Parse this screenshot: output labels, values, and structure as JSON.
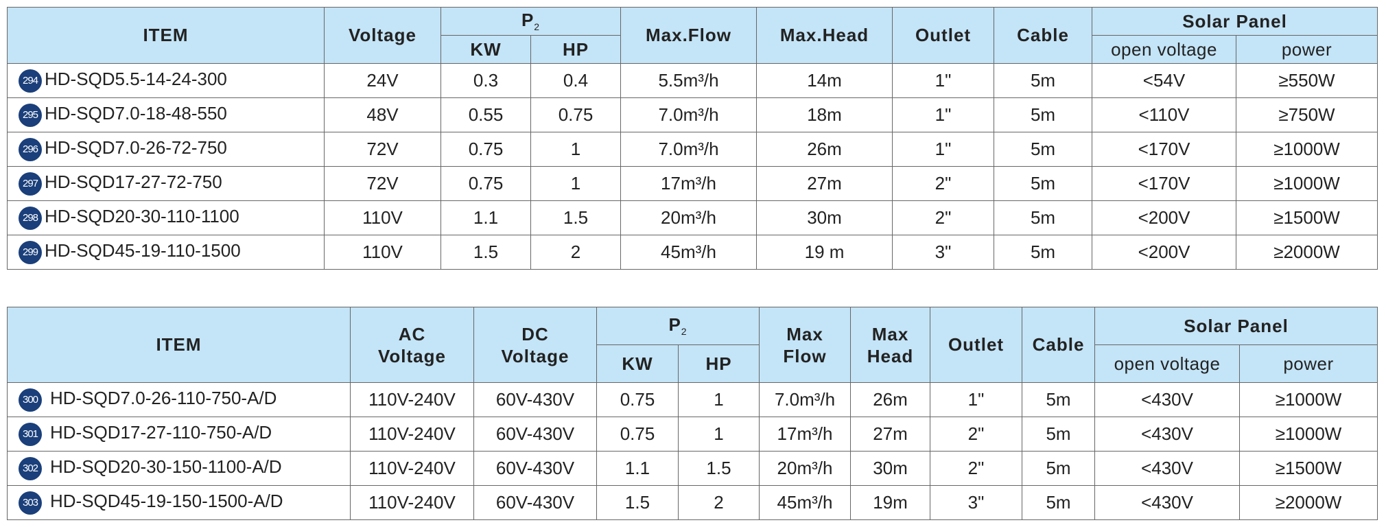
{
  "tables": [
    {
      "header": {
        "item": "ITEM",
        "voltage": "Voltage",
        "p2": "P",
        "p2_sub": "2",
        "kw": "KW",
        "hp": "HP",
        "max_flow": "Max.Flow",
        "max_head": "Max.Head",
        "outlet": "Outlet",
        "cable": "Cable",
        "solar_panel": "Solar Panel",
        "open_voltage": "open voltage",
        "power": "power"
      },
      "rows": [
        [
          "294",
          "HD-SQD5.5-14-24-300",
          "24V",
          "0.3",
          "0.4",
          "5.5m³/h",
          "14m",
          "1\"",
          "5m",
          "<54V",
          "≥550W"
        ],
        [
          "295",
          "HD-SQD7.0-18-48-550",
          "48V",
          "0.55",
          "0.75",
          "7.0m³/h",
          "18m",
          "1\"",
          "5m",
          "<110V",
          "≥750W"
        ],
        [
          "296",
          "HD-SQD7.0-26-72-750",
          "72V",
          "0.75",
          "1",
          "7.0m³/h",
          "26m",
          "1\"",
          "5m",
          "<170V",
          "≥1000W"
        ],
        [
          "297",
          "HD-SQD17-27-72-750",
          "72V",
          "0.75",
          "1",
          "17m³/h",
          "27m",
          "2\"",
          "5m",
          "<170V",
          "≥1000W"
        ],
        [
          "298",
          "HD-SQD20-30-110-1100",
          "110V",
          "1.1",
          "1.5",
          "20m³/h",
          "30m",
          "2\"",
          "5m",
          "<200V",
          "≥1500W"
        ],
        [
          "299",
          "HD-SQD45-19-110-1500",
          "110V",
          "1.5",
          "2",
          "45m³/h",
          "19 m",
          "3\"",
          "5m",
          "<200V",
          "≥2000W"
        ]
      ]
    },
    {
      "header": {
        "item": "ITEM",
        "ac_voltage": "AC Voltage",
        "dc_voltage": "DC Voltage",
        "p2": "P",
        "p2_sub": "2",
        "kw": "KW",
        "hp": "HP",
        "max_flow": "Max Flow",
        "max_head": "Max Head",
        "outlet": "Outlet",
        "cable": "Cable",
        "solar_panel": "Solar Panel",
        "open_voltage": "open voltage",
        "power": "power"
      },
      "rows": [
        [
          "300",
          "HD-SQD7.0-26-110-750-A/D",
          "110V-240V",
          "60V-430V",
          "0.75",
          "1",
          "7.0m³/h",
          "26m",
          "1\"",
          "5m",
          "<430V",
          "≥1000W"
        ],
        [
          "301",
          "HD-SQD17-27-110-750-A/D",
          "110V-240V",
          "60V-430V",
          "0.75",
          "1",
          "17m³/h",
          "27m",
          "2\"",
          "5m",
          "<430V",
          "≥1000W"
        ],
        [
          "302",
          "HD-SQD20-30-150-1100-A/D",
          "110V-240V",
          "60V-430V",
          "1.1",
          "1.5",
          "20m³/h",
          "30m",
          "2\"",
          "5m",
          "<430V",
          "≥1500W"
        ],
        [
          "303",
          "HD-SQD45-19-150-1500-A/D",
          "110V-240V",
          "60V-430V",
          "1.5",
          "2",
          "45m³/h",
          "19m",
          "3\"",
          "5m",
          "<430V",
          "≥2000W"
        ]
      ]
    }
  ]
}
